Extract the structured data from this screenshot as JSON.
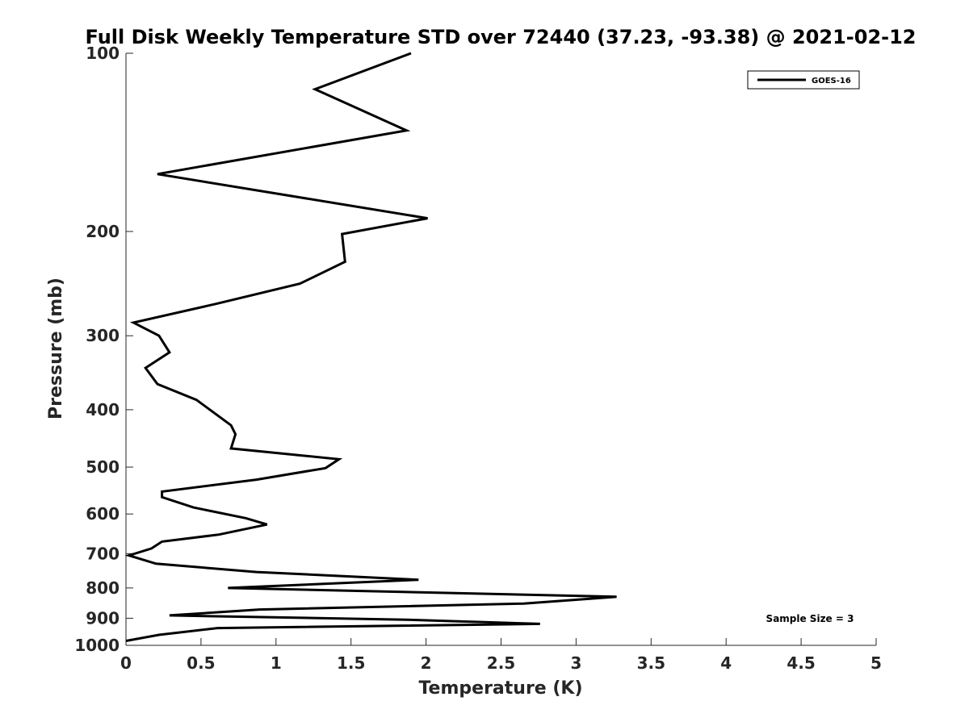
{
  "chart_data": {
    "type": "line",
    "title": "Full Disk Weekly Temperature STD over 72440 (37.23, -93.38) @ 2021-02-12",
    "xlabel": "Temperature (K)",
    "ylabel": "Pressure (mb)",
    "xlim": [
      0,
      5
    ],
    "ylim": [
      100,
      1000
    ],
    "y_scale": "log",
    "y_reversed": true,
    "x_ticks": [
      "0",
      "0.5",
      "1",
      "1.5",
      "2",
      "2.5",
      "3",
      "3.5",
      "4",
      "4.5",
      "5"
    ],
    "y_ticks": [
      "100",
      "200",
      "300",
      "400",
      "500",
      "600",
      "700",
      "800",
      "900",
      "1000"
    ],
    "grid": false,
    "legend_position": "top-right",
    "annotation": "Sample Size = 3",
    "series": [
      {
        "name": "GOES-16",
        "color": "#000000",
        "points": [
          [
            1.9,
            100
          ],
          [
            1.26,
            115
          ],
          [
            1.87,
            135
          ],
          [
            0.21,
            160
          ],
          [
            2.01,
            190
          ],
          [
            1.44,
            202
          ],
          [
            1.46,
            225
          ],
          [
            1.16,
            245
          ],
          [
            0.6,
            265
          ],
          [
            0.05,
            285
          ],
          [
            0.22,
            300
          ],
          [
            0.29,
            320
          ],
          [
            0.13,
            340
          ],
          [
            0.21,
            362
          ],
          [
            0.47,
            385
          ],
          [
            0.7,
            425
          ],
          [
            0.73,
            440
          ],
          [
            0.7,
            465
          ],
          [
            1.42,
            485
          ],
          [
            1.33,
            502
          ],
          [
            0.87,
            525
          ],
          [
            0.24,
            550
          ],
          [
            0.24,
            562
          ],
          [
            0.45,
            585
          ],
          [
            0.8,
            610
          ],
          [
            0.94,
            625
          ],
          [
            0.62,
            650
          ],
          [
            0.24,
            668
          ],
          [
            0.17,
            686
          ],
          [
            0.02,
            705
          ],
          [
            0.2,
            728
          ],
          [
            0.87,
            752
          ],
          [
            1.95,
            775
          ],
          [
            0.68,
            800
          ],
          [
            3.27,
            828
          ],
          [
            2.65,
            850
          ],
          [
            0.89,
            870
          ],
          [
            0.29,
            890
          ],
          [
            1.87,
            905
          ],
          [
            2.76,
            920
          ],
          [
            0.61,
            935
          ],
          [
            0.22,
            960
          ],
          [
            0.0,
            983
          ]
        ]
      }
    ]
  }
}
